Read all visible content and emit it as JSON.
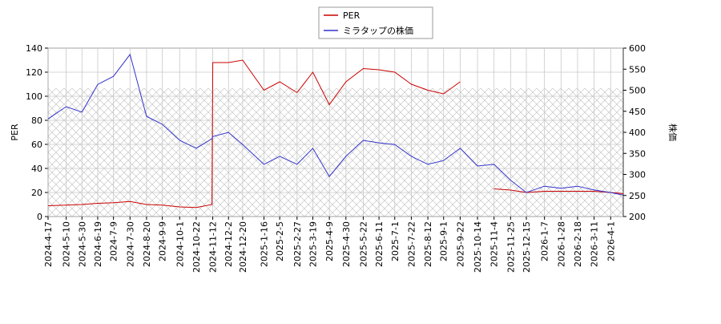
{
  "chart_data": {
    "type": "line",
    "x": [
      "2024-4-17",
      "2024-5-10",
      "2024-5-30",
      "2024-6-19",
      "2024-7-9",
      "2024-7-30",
      "2024-8-20",
      "2024-9-9",
      "2024-10-1",
      "2024-10-22",
      "2024-11-11",
      "2024-11-12",
      "2024-12-2",
      "2024-12-20",
      "2025-1-16",
      "2025-2-5",
      "2025-2-27",
      "2025-3-19",
      "2025-4-9",
      "2025-4-30",
      "2025-5-22",
      "2025-6-11",
      "2025-7-1",
      "2025-7-22",
      "2025-8-12",
      "2025-9-1",
      "2025-9-22",
      "2025-10-14",
      "2025-11-4",
      "2025-11-25",
      "2025-12-15",
      "2026-1-7",
      "2026-1-28",
      "2026-2-18",
      "2026-3-11",
      "2026-4-1",
      "2026-4-17"
    ],
    "series": [
      {
        "name": "PER",
        "color": "#cc0000",
        "axis": "y",
        "values": [
          9,
          9.5,
          10,
          11,
          11.5,
          12.5,
          10,
          9.5,
          8,
          7.5,
          10,
          128,
          128,
          130,
          105,
          112,
          103,
          120,
          93,
          112,
          123,
          122,
          120,
          110,
          105,
          102,
          112,
          null,
          23,
          22,
          20,
          21,
          21,
          21,
          21,
          20,
          19
        ]
      },
      {
        "name": "ミラタップの株価",
        "color": "#3333cc",
        "axis": "y2",
        "values": [
          432,
          461,
          448,
          514,
          533,
          585,
          438,
          419,
          381,
          362,
          385,
          390,
          400,
          371,
          324,
          343,
          324,
          362,
          295,
          343,
          381,
          375,
          371,
          343,
          324,
          333,
          362,
          320,
          324,
          286,
          257,
          272,
          267,
          272,
          263,
          257,
          251
        ]
      }
    ],
    "xlim": [
      "2024-4-17",
      "2026-4-17"
    ],
    "xticks": [
      "2024-4-17",
      "2024-5-10",
      "2024-5-30",
      "2024-6-19",
      "2024-7-9",
      "2024-7-30",
      "2024-8-20",
      "2024-9-9",
      "2024-10-1",
      "2024-10-22",
      "2024-11-12",
      "2024-12-2",
      "2024-12-20",
      "2025-1-16",
      "2025-2-5",
      "2025-2-27",
      "2025-3-19",
      "2025-4-9",
      "2025-4-30",
      "2025-5-22",
      "2025-6-11",
      "2025-7-1",
      "2025-7-22",
      "2025-8-12",
      "2025-9-1",
      "2025-9-22",
      "2025-10-14",
      "2025-11-4",
      "2025-11-25",
      "2025-12-15",
      "2026-1-7",
      "2026-1-28",
      "2026-2-18",
      "2026-3-11",
      "2026-4-1"
    ],
    "ylim": [
      0,
      140
    ],
    "yticks": [
      0,
      20,
      40,
      60,
      80,
      100,
      120,
      140
    ],
    "y2lim": [
      200,
      600
    ],
    "y2ticks": [
      200,
      250,
      300,
      350,
      400,
      450,
      500,
      550,
      600
    ],
    "ylabel": "PER",
    "y2label": "株価",
    "grid": true
  }
}
